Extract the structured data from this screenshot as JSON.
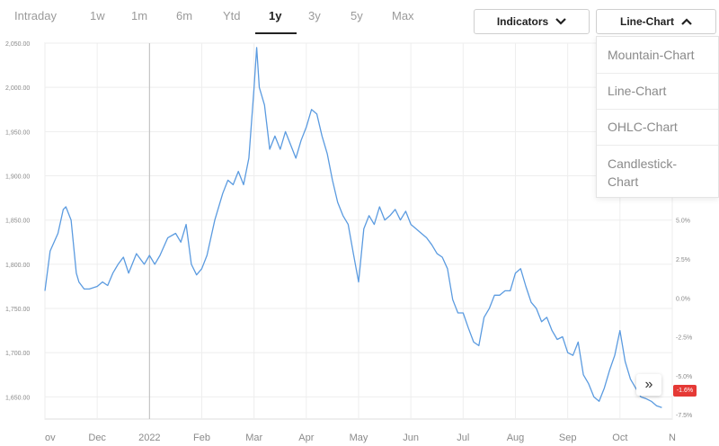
{
  "tabs": [
    {
      "label": "Intraday",
      "active": false
    },
    {
      "label": "1w",
      "active": false
    },
    {
      "label": "1m",
      "active": false
    },
    {
      "label": "6m",
      "active": false
    },
    {
      "label": "Ytd",
      "active": false
    },
    {
      "label": "1y",
      "active": true
    },
    {
      "label": "3y",
      "active": false
    },
    {
      "label": "5y",
      "active": false
    },
    {
      "label": "Max",
      "active": false
    }
  ],
  "toolbar": {
    "indicators_label": "Indicators",
    "chart_type_label": "Line-Chart"
  },
  "chart_type_menu": {
    "items": [
      "Mountain-Chart",
      "Line-Chart",
      "OHLC-Chart",
      "Candlestick-\nChart"
    ]
  },
  "badge": {
    "label": "-1.6%"
  },
  "expand_icon": "double-chevron-right-icon",
  "colors": {
    "line": "#5b9be0",
    "badge": "#e53935",
    "grid": "#eeeeee"
  },
  "chart_data": {
    "type": "line",
    "title": "",
    "xlabel": "",
    "ylabel": "",
    "ylim": [
      1625,
      2050
    ],
    "yticks": [
      "2,050.00",
      "2,000.00",
      "1,950.00",
      "1,900.00",
      "1,850.00",
      "1,800.00",
      "1,750.00",
      "1,700.00",
      "1,650.00"
    ],
    "ytick_values": [
      2050,
      2000,
      1950,
      1900,
      1850,
      1800,
      1750,
      1700,
      1650
    ],
    "right_ticks": [
      "5.0%",
      "2.5%",
      "0.0%",
      "-2.5%",
      "-5.0%",
      "-7.5%"
    ],
    "right_tick_values": [
      1850,
      1806,
      1762,
      1718,
      1674,
      1630
    ],
    "xticks": [
      "ov",
      "Dec",
      "2022",
      "Feb",
      "Mar",
      "Apr",
      "May",
      "Jun",
      "Jul",
      "Aug",
      "Sep",
      "Oct",
      "N"
    ],
    "xtick_positions": [
      0,
      1.0,
      2.0,
      3.0,
      4.0,
      5.0,
      6.0,
      7.0,
      8.0,
      9.0,
      10.0,
      11.0,
      12.0
    ],
    "x": [
      0,
      0.1,
      0.25,
      0.35,
      0.4,
      0.5,
      0.6,
      0.65,
      0.75,
      0.85,
      1.0,
      1.1,
      1.2,
      1.3,
      1.4,
      1.5,
      1.6,
      1.75,
      1.9,
      2.0,
      2.1,
      2.2,
      2.35,
      2.5,
      2.6,
      2.7,
      2.8,
      2.9,
      3.0,
      3.1,
      3.25,
      3.4,
      3.5,
      3.6,
      3.7,
      3.8,
      3.9,
      4.0,
      4.05,
      4.1,
      4.2,
      4.3,
      4.4,
      4.5,
      4.6,
      4.7,
      4.8,
      4.9,
      5.0,
      5.1,
      5.2,
      5.3,
      5.4,
      5.5,
      5.6,
      5.7,
      5.8,
      5.9,
      6.0,
      6.1,
      6.2,
      6.3,
      6.4,
      6.5,
      6.6,
      6.7,
      6.8,
      6.9,
      7.0,
      7.1,
      7.2,
      7.3,
      7.4,
      7.5,
      7.6,
      7.7,
      7.8,
      7.9,
      8.0,
      8.1,
      8.2,
      8.3,
      8.4,
      8.5,
      8.6,
      8.7,
      8.8,
      8.9,
      9.0,
      9.1,
      9.2,
      9.3,
      9.4,
      9.5,
      9.6,
      9.7,
      9.8,
      9.9,
      10.0,
      10.1,
      10.2,
      10.3,
      10.4,
      10.5,
      10.6,
      10.7,
      10.8,
      10.9,
      11.0,
      11.1,
      11.2,
      11.3,
      11.4,
      11.5,
      11.6,
      11.7,
      11.8
    ],
    "y": [
      1770,
      1815,
      1835,
      1862,
      1865,
      1850,
      1790,
      1780,
      1772,
      1772,
      1775,
      1780,
      1776,
      1790,
      1800,
      1808,
      1790,
      1812,
      1800,
      1810,
      1800,
      1810,
      1830,
      1835,
      1825,
      1845,
      1800,
      1788,
      1795,
      1810,
      1850,
      1880,
      1895,
      1890,
      1905,
      1890,
      1920,
      2000,
      2045,
      2000,
      1980,
      1930,
      1945,
      1930,
      1950,
      1935,
      1920,
      1940,
      1955,
      1975,
      1970,
      1945,
      1925,
      1895,
      1870,
      1855,
      1845,
      1812,
      1780,
      1840,
      1855,
      1845,
      1865,
      1850,
      1855,
      1862,
      1850,
      1860,
      1845,
      1840,
      1835,
      1830,
      1822,
      1812,
      1808,
      1795,
      1760,
      1745,
      1745,
      1728,
      1712,
      1708,
      1740,
      1750,
      1765,
      1765,
      1770,
      1770,
      1790,
      1795,
      1775,
      1757,
      1750,
      1735,
      1740,
      1725,
      1715,
      1718,
      1700,
      1697,
      1712,
      1675,
      1665,
      1650,
      1645,
      1660,
      1680,
      1697,
      1725,
      1690,
      1670,
      1660,
      1650,
      1648,
      1645,
      1640,
      1638
    ]
  }
}
